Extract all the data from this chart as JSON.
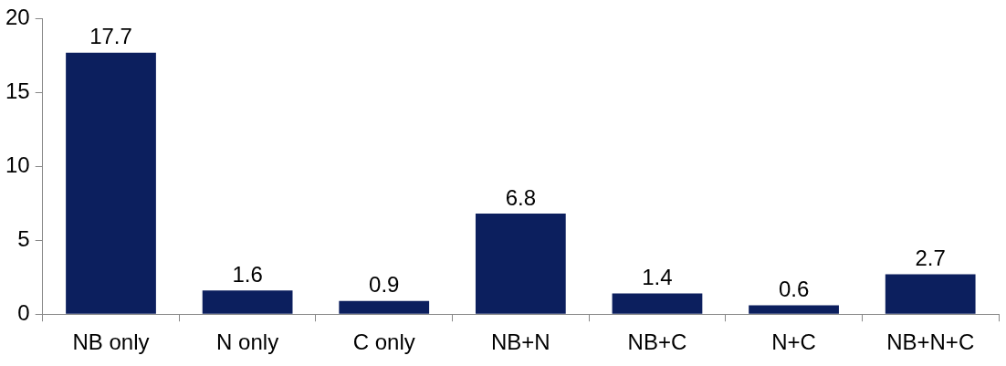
{
  "chart_data": {
    "type": "bar",
    "categories": [
      "NB only",
      "N only",
      "C only",
      "NB+N",
      "NB+C",
      "N+C",
      "NB+N+C"
    ],
    "values": [
      17.7,
      1.6,
      0.9,
      6.8,
      1.4,
      0.6,
      2.7
    ],
    "color": "#0c1f5e",
    "ylim": [
      0,
      20
    ],
    "yticks": [
      0,
      5,
      10,
      15,
      20
    ],
    "grid": false,
    "legend": false,
    "data_labels": true
  }
}
